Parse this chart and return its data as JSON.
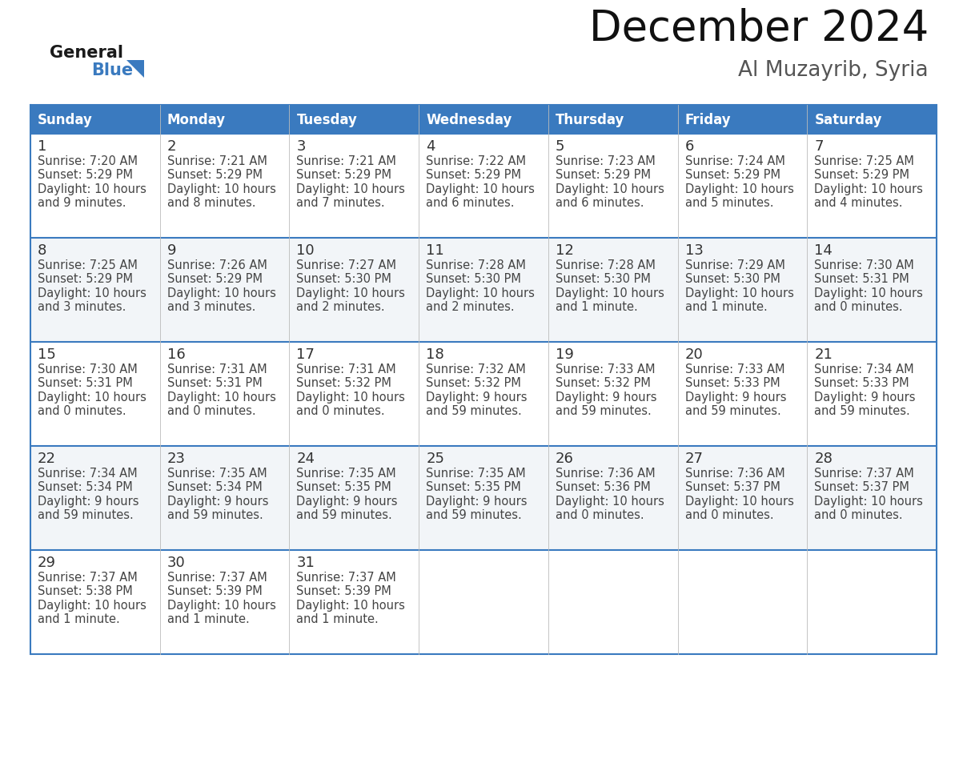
{
  "title": "December 2024",
  "subtitle": "Al Muzayrib, Syria",
  "days_of_week": [
    "Sunday",
    "Monday",
    "Tuesday",
    "Wednesday",
    "Thursday",
    "Friday",
    "Saturday"
  ],
  "header_bg_color": "#3a7abf",
  "header_text_color": "#ffffff",
  "cell_bg_even": "#f2f5f8",
  "cell_bg_odd": "#ffffff",
  "border_color": "#3a7abf",
  "day_num_color": "#333333",
  "cell_text_color": "#444444",
  "grid_line_color": "#bbbbbb",
  "logo_color_general": "#1a1a1a",
  "logo_color_blue": "#3a7abf",
  "calendar_data": [
    [
      {
        "day": "1",
        "sunrise": "7:20 AM",
        "sunset": "5:29 PM",
        "dl1": "Daylight: 10 hours",
        "dl2": "and 9 minutes."
      },
      {
        "day": "2",
        "sunrise": "7:21 AM",
        "sunset": "5:29 PM",
        "dl1": "Daylight: 10 hours",
        "dl2": "and 8 minutes."
      },
      {
        "day": "3",
        "sunrise": "7:21 AM",
        "sunset": "5:29 PM",
        "dl1": "Daylight: 10 hours",
        "dl2": "and 7 minutes."
      },
      {
        "day": "4",
        "sunrise": "7:22 AM",
        "sunset": "5:29 PM",
        "dl1": "Daylight: 10 hours",
        "dl2": "and 6 minutes."
      },
      {
        "day": "5",
        "sunrise": "7:23 AM",
        "sunset": "5:29 PM",
        "dl1": "Daylight: 10 hours",
        "dl2": "and 6 minutes."
      },
      {
        "day": "6",
        "sunrise": "7:24 AM",
        "sunset": "5:29 PM",
        "dl1": "Daylight: 10 hours",
        "dl2": "and 5 minutes."
      },
      {
        "day": "7",
        "sunrise": "7:25 AM",
        "sunset": "5:29 PM",
        "dl1": "Daylight: 10 hours",
        "dl2": "and 4 minutes."
      }
    ],
    [
      {
        "day": "8",
        "sunrise": "7:25 AM",
        "sunset": "5:29 PM",
        "dl1": "Daylight: 10 hours",
        "dl2": "and 3 minutes."
      },
      {
        "day": "9",
        "sunrise": "7:26 AM",
        "sunset": "5:29 PM",
        "dl1": "Daylight: 10 hours",
        "dl2": "and 3 minutes."
      },
      {
        "day": "10",
        "sunrise": "7:27 AM",
        "sunset": "5:30 PM",
        "dl1": "Daylight: 10 hours",
        "dl2": "and 2 minutes."
      },
      {
        "day": "11",
        "sunrise": "7:28 AM",
        "sunset": "5:30 PM",
        "dl1": "Daylight: 10 hours",
        "dl2": "and 2 minutes."
      },
      {
        "day": "12",
        "sunrise": "7:28 AM",
        "sunset": "5:30 PM",
        "dl1": "Daylight: 10 hours",
        "dl2": "and 1 minute."
      },
      {
        "day": "13",
        "sunrise": "7:29 AM",
        "sunset": "5:30 PM",
        "dl1": "Daylight: 10 hours",
        "dl2": "and 1 minute."
      },
      {
        "day": "14",
        "sunrise": "7:30 AM",
        "sunset": "5:31 PM",
        "dl1": "Daylight: 10 hours",
        "dl2": "and 0 minutes."
      }
    ],
    [
      {
        "day": "15",
        "sunrise": "7:30 AM",
        "sunset": "5:31 PM",
        "dl1": "Daylight: 10 hours",
        "dl2": "and 0 minutes."
      },
      {
        "day": "16",
        "sunrise": "7:31 AM",
        "sunset": "5:31 PM",
        "dl1": "Daylight: 10 hours",
        "dl2": "and 0 minutes."
      },
      {
        "day": "17",
        "sunrise": "7:31 AM",
        "sunset": "5:32 PM",
        "dl1": "Daylight: 10 hours",
        "dl2": "and 0 minutes."
      },
      {
        "day": "18",
        "sunrise": "7:32 AM",
        "sunset": "5:32 PM",
        "dl1": "Daylight: 9 hours",
        "dl2": "and 59 minutes."
      },
      {
        "day": "19",
        "sunrise": "7:33 AM",
        "sunset": "5:32 PM",
        "dl1": "Daylight: 9 hours",
        "dl2": "and 59 minutes."
      },
      {
        "day": "20",
        "sunrise": "7:33 AM",
        "sunset": "5:33 PM",
        "dl1": "Daylight: 9 hours",
        "dl2": "and 59 minutes."
      },
      {
        "day": "21",
        "sunrise": "7:34 AM",
        "sunset": "5:33 PM",
        "dl1": "Daylight: 9 hours",
        "dl2": "and 59 minutes."
      }
    ],
    [
      {
        "day": "22",
        "sunrise": "7:34 AM",
        "sunset": "5:34 PM",
        "dl1": "Daylight: 9 hours",
        "dl2": "and 59 minutes."
      },
      {
        "day": "23",
        "sunrise": "7:35 AM",
        "sunset": "5:34 PM",
        "dl1": "Daylight: 9 hours",
        "dl2": "and 59 minutes."
      },
      {
        "day": "24",
        "sunrise": "7:35 AM",
        "sunset": "5:35 PM",
        "dl1": "Daylight: 9 hours",
        "dl2": "and 59 minutes."
      },
      {
        "day": "25",
        "sunrise": "7:35 AM",
        "sunset": "5:35 PM",
        "dl1": "Daylight: 9 hours",
        "dl2": "and 59 minutes."
      },
      {
        "day": "26",
        "sunrise": "7:36 AM",
        "sunset": "5:36 PM",
        "dl1": "Daylight: 10 hours",
        "dl2": "and 0 minutes."
      },
      {
        "day": "27",
        "sunrise": "7:36 AM",
        "sunset": "5:37 PM",
        "dl1": "Daylight: 10 hours",
        "dl2": "and 0 minutes."
      },
      {
        "day": "28",
        "sunrise": "7:37 AM",
        "sunset": "5:37 PM",
        "dl1": "Daylight: 10 hours",
        "dl2": "and 0 minutes."
      }
    ],
    [
      {
        "day": "29",
        "sunrise": "7:37 AM",
        "sunset": "5:38 PM",
        "dl1": "Daylight: 10 hours",
        "dl2": "and 1 minute."
      },
      {
        "day": "30",
        "sunrise": "7:37 AM",
        "sunset": "5:39 PM",
        "dl1": "Daylight: 10 hours",
        "dl2": "and 1 minute."
      },
      {
        "day": "31",
        "sunrise": "7:37 AM",
        "sunset": "5:39 PM",
        "dl1": "Daylight: 10 hours",
        "dl2": "and 1 minute."
      },
      null,
      null,
      null,
      null
    ]
  ]
}
